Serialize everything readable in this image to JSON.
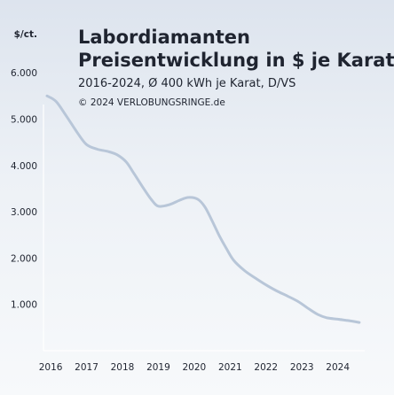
{
  "chart_data": {
    "type": "line",
    "title": "Labordiamanten\nPreisentwicklung in $ je Karat",
    "subtitle": "2016-2024, Ø 400 kWh je Karat, D/VS",
    "credit": "© 2024 VERLOBUNGSRINGE.de",
    "ylabel": "$/ct.",
    "xlabel": "",
    "ylim": [
      0,
      6500
    ],
    "xlim": [
      2015.8,
      2024.75
    ],
    "y_ticks": [
      1000,
      2000,
      3000,
      4000,
      5000,
      6000
    ],
    "y_tick_labels": [
      "1.000",
      "2.000",
      "3.000",
      "4.000",
      "5.000",
      "6.000"
    ],
    "x_ticks": [
      2016,
      2017,
      2018,
      2019,
      2020,
      2021,
      2022,
      2023,
      2024
    ],
    "x_tick_labels": [
      "2016",
      "2017",
      "2018",
      "2019",
      "2020",
      "2021",
      "2022",
      "2023",
      "2024"
    ],
    "grid": false,
    "series": [
      {
        "color": "#b8c6d8",
        "x": [
          2015.9,
          2016.15,
          2016.45,
          2016.75,
          2017.0,
          2017.3,
          2017.6,
          2017.85,
          2018.1,
          2018.3,
          2018.55,
          2018.8,
          2019.0,
          2019.3,
          2019.6,
          2019.85,
          2020.1,
          2020.3,
          2020.5,
          2020.7,
          2020.9,
          2021.1,
          2021.4,
          2021.7,
          2022.0,
          2022.3,
          2022.6,
          2022.9,
          2023.2,
          2023.45,
          2023.7,
          2024.0,
          2024.3,
          2024.6
        ],
        "y": [
          5500,
          5380,
          5050,
          4700,
          4450,
          4350,
          4300,
          4230,
          4080,
          3850,
          3550,
          3270,
          3120,
          3150,
          3250,
          3310,
          3270,
          3100,
          2800,
          2480,
          2200,
          1950,
          1730,
          1570,
          1420,
          1290,
          1180,
          1060,
          900,
          780,
          710,
          680,
          650,
          610
        ]
      }
    ]
  }
}
